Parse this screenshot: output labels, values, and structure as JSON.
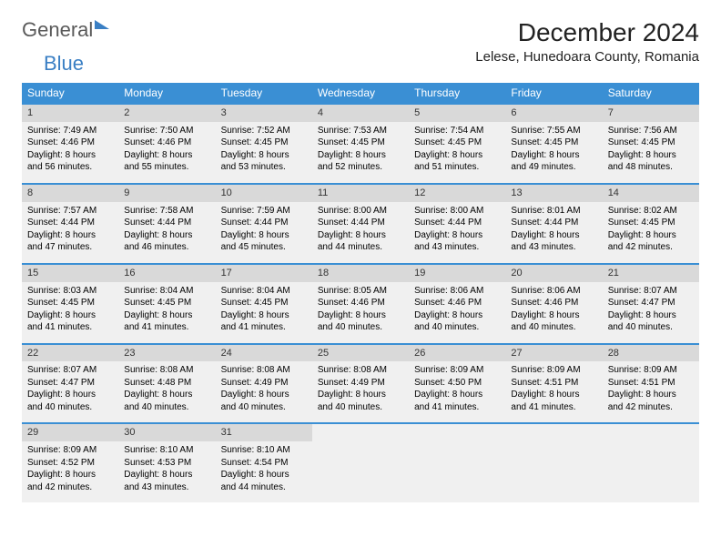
{
  "brand": {
    "part1": "General",
    "part2": "Blue"
  },
  "title": "December 2024",
  "location": "Lelese, Hunedoara County, Romania",
  "weekdays": [
    "Sunday",
    "Monday",
    "Tuesday",
    "Wednesday",
    "Thursday",
    "Friday",
    "Saturday"
  ],
  "colors": {
    "header_bg": "#3a8fd4",
    "header_fg": "#ffffff",
    "daynum_bg": "#d9d9d9",
    "cell_bg": "#f0f0f0",
    "row_border": "#3a8fd4"
  },
  "weeks": [
    [
      {
        "n": "1",
        "sr": "Sunrise: 7:49 AM",
        "ss": "Sunset: 4:46 PM",
        "d1": "Daylight: 8 hours",
        "d2": "and 56 minutes."
      },
      {
        "n": "2",
        "sr": "Sunrise: 7:50 AM",
        "ss": "Sunset: 4:46 PM",
        "d1": "Daylight: 8 hours",
        "d2": "and 55 minutes."
      },
      {
        "n": "3",
        "sr": "Sunrise: 7:52 AM",
        "ss": "Sunset: 4:45 PM",
        "d1": "Daylight: 8 hours",
        "d2": "and 53 minutes."
      },
      {
        "n": "4",
        "sr": "Sunrise: 7:53 AM",
        "ss": "Sunset: 4:45 PM",
        "d1": "Daylight: 8 hours",
        "d2": "and 52 minutes."
      },
      {
        "n": "5",
        "sr": "Sunrise: 7:54 AM",
        "ss": "Sunset: 4:45 PM",
        "d1": "Daylight: 8 hours",
        "d2": "and 51 minutes."
      },
      {
        "n": "6",
        "sr": "Sunrise: 7:55 AM",
        "ss": "Sunset: 4:45 PM",
        "d1": "Daylight: 8 hours",
        "d2": "and 49 minutes."
      },
      {
        "n": "7",
        "sr": "Sunrise: 7:56 AM",
        "ss": "Sunset: 4:45 PM",
        "d1": "Daylight: 8 hours",
        "d2": "and 48 minutes."
      }
    ],
    [
      {
        "n": "8",
        "sr": "Sunrise: 7:57 AM",
        "ss": "Sunset: 4:44 PM",
        "d1": "Daylight: 8 hours",
        "d2": "and 47 minutes."
      },
      {
        "n": "9",
        "sr": "Sunrise: 7:58 AM",
        "ss": "Sunset: 4:44 PM",
        "d1": "Daylight: 8 hours",
        "d2": "and 46 minutes."
      },
      {
        "n": "10",
        "sr": "Sunrise: 7:59 AM",
        "ss": "Sunset: 4:44 PM",
        "d1": "Daylight: 8 hours",
        "d2": "and 45 minutes."
      },
      {
        "n": "11",
        "sr": "Sunrise: 8:00 AM",
        "ss": "Sunset: 4:44 PM",
        "d1": "Daylight: 8 hours",
        "d2": "and 44 minutes."
      },
      {
        "n": "12",
        "sr": "Sunrise: 8:00 AM",
        "ss": "Sunset: 4:44 PM",
        "d1": "Daylight: 8 hours",
        "d2": "and 43 minutes."
      },
      {
        "n": "13",
        "sr": "Sunrise: 8:01 AM",
        "ss": "Sunset: 4:44 PM",
        "d1": "Daylight: 8 hours",
        "d2": "and 43 minutes."
      },
      {
        "n": "14",
        "sr": "Sunrise: 8:02 AM",
        "ss": "Sunset: 4:45 PM",
        "d1": "Daylight: 8 hours",
        "d2": "and 42 minutes."
      }
    ],
    [
      {
        "n": "15",
        "sr": "Sunrise: 8:03 AM",
        "ss": "Sunset: 4:45 PM",
        "d1": "Daylight: 8 hours",
        "d2": "and 41 minutes."
      },
      {
        "n": "16",
        "sr": "Sunrise: 8:04 AM",
        "ss": "Sunset: 4:45 PM",
        "d1": "Daylight: 8 hours",
        "d2": "and 41 minutes."
      },
      {
        "n": "17",
        "sr": "Sunrise: 8:04 AM",
        "ss": "Sunset: 4:45 PM",
        "d1": "Daylight: 8 hours",
        "d2": "and 41 minutes."
      },
      {
        "n": "18",
        "sr": "Sunrise: 8:05 AM",
        "ss": "Sunset: 4:46 PM",
        "d1": "Daylight: 8 hours",
        "d2": "and 40 minutes."
      },
      {
        "n": "19",
        "sr": "Sunrise: 8:06 AM",
        "ss": "Sunset: 4:46 PM",
        "d1": "Daylight: 8 hours",
        "d2": "and 40 minutes."
      },
      {
        "n": "20",
        "sr": "Sunrise: 8:06 AM",
        "ss": "Sunset: 4:46 PM",
        "d1": "Daylight: 8 hours",
        "d2": "and 40 minutes."
      },
      {
        "n": "21",
        "sr": "Sunrise: 8:07 AM",
        "ss": "Sunset: 4:47 PM",
        "d1": "Daylight: 8 hours",
        "d2": "and 40 minutes."
      }
    ],
    [
      {
        "n": "22",
        "sr": "Sunrise: 8:07 AM",
        "ss": "Sunset: 4:47 PM",
        "d1": "Daylight: 8 hours",
        "d2": "and 40 minutes."
      },
      {
        "n": "23",
        "sr": "Sunrise: 8:08 AM",
        "ss": "Sunset: 4:48 PM",
        "d1": "Daylight: 8 hours",
        "d2": "and 40 minutes."
      },
      {
        "n": "24",
        "sr": "Sunrise: 8:08 AM",
        "ss": "Sunset: 4:49 PM",
        "d1": "Daylight: 8 hours",
        "d2": "and 40 minutes."
      },
      {
        "n": "25",
        "sr": "Sunrise: 8:08 AM",
        "ss": "Sunset: 4:49 PM",
        "d1": "Daylight: 8 hours",
        "d2": "and 40 minutes."
      },
      {
        "n": "26",
        "sr": "Sunrise: 8:09 AM",
        "ss": "Sunset: 4:50 PM",
        "d1": "Daylight: 8 hours",
        "d2": "and 41 minutes."
      },
      {
        "n": "27",
        "sr": "Sunrise: 8:09 AM",
        "ss": "Sunset: 4:51 PM",
        "d1": "Daylight: 8 hours",
        "d2": "and 41 minutes."
      },
      {
        "n": "28",
        "sr": "Sunrise: 8:09 AM",
        "ss": "Sunset: 4:51 PM",
        "d1": "Daylight: 8 hours",
        "d2": "and 42 minutes."
      }
    ],
    [
      {
        "n": "29",
        "sr": "Sunrise: 8:09 AM",
        "ss": "Sunset: 4:52 PM",
        "d1": "Daylight: 8 hours",
        "d2": "and 42 minutes."
      },
      {
        "n": "30",
        "sr": "Sunrise: 8:10 AM",
        "ss": "Sunset: 4:53 PM",
        "d1": "Daylight: 8 hours",
        "d2": "and 43 minutes."
      },
      {
        "n": "31",
        "sr": "Sunrise: 8:10 AM",
        "ss": "Sunset: 4:54 PM",
        "d1": "Daylight: 8 hours",
        "d2": "and 44 minutes."
      },
      null,
      null,
      null,
      null
    ]
  ]
}
